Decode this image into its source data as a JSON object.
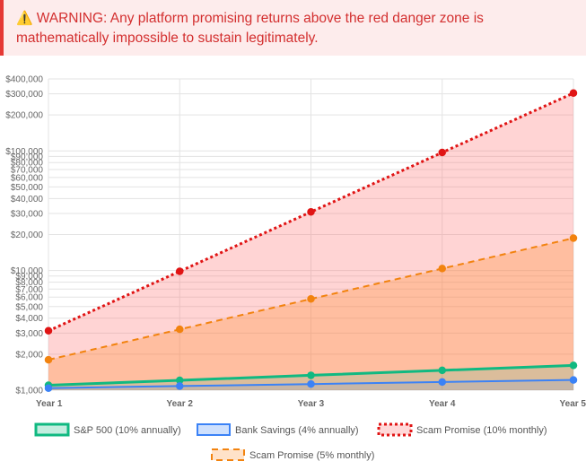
{
  "warning": {
    "icon": "warning-icon",
    "text": "WARNING: Any platform promising returns above the red danger zone is mathematically impossible to sustain legitimately."
  },
  "chart_data": {
    "type": "line",
    "x": [
      "Year 1",
      "Year 2",
      "Year 3",
      "Year 4",
      "Year 5"
    ],
    "y_scale": "log",
    "ylim": [
      1000,
      400000
    ],
    "y_ticks": [
      {
        "v": 1000,
        "label": "$1,000"
      },
      {
        "v": 2000,
        "label": "$2,000"
      },
      {
        "v": 3000,
        "label": "$3,000"
      },
      {
        "v": 4000,
        "label": "$4,000"
      },
      {
        "v": 5000,
        "label": "$5,000"
      },
      {
        "v": 6000,
        "label": "$6,000"
      },
      {
        "v": 7000,
        "label": "$7,000"
      },
      {
        "v": 8000,
        "label": "$8,000"
      },
      {
        "v": 9000,
        "label": "$9,000"
      },
      {
        "v": 10000,
        "label": "$10,000"
      },
      {
        "v": 20000,
        "label": "$20,000"
      },
      {
        "v": 30000,
        "label": "$30,000"
      },
      {
        "v": 40000,
        "label": "$40,000"
      },
      {
        "v": 50000,
        "label": "$50,000"
      },
      {
        "v": 60000,
        "label": "$60,000"
      },
      {
        "v": 70000,
        "label": "$70,000"
      },
      {
        "v": 80000,
        "label": "$80,000"
      },
      {
        "v": 90000,
        "label": "$90,000"
      },
      {
        "v": 100000,
        "label": "$100,000"
      },
      {
        "v": 200000,
        "label": "$200,000"
      },
      {
        "v": 300000,
        "label": "$300,000"
      },
      {
        "v": 400000,
        "label": "$400,000"
      }
    ],
    "grid": true,
    "legend_position": "bottom",
    "series": [
      {
        "name": "S&P 500 (10% annually)",
        "values": [
          1100,
          1210,
          1331,
          1464,
          1611
        ],
        "color": "#10b981",
        "fill": "rgba(16,185,129,0.15)",
        "style": "solid",
        "width": 3
      },
      {
        "name": "Bank Savings (4% annually)",
        "values": [
          1040,
          1082,
          1125,
          1170,
          1217
        ],
        "color": "#3b82f6",
        "fill": "rgba(59,130,246,0.12)",
        "style": "solid",
        "width": 2
      },
      {
        "name": "Scam Promise (10% monthly)",
        "values": [
          3138,
          9850,
          30913,
          97017,
          304480
        ],
        "color": "#e01414",
        "fill": "rgba(255,99,99,0.28)",
        "style": "dotted",
        "width": 3
      },
      {
        "name": "Scam Promise (5% monthly)",
        "values": [
          1796,
          3226,
          5792,
          10401,
          18679
        ],
        "color": "#f2830f",
        "fill": "rgba(255,140,40,0.30)",
        "style": "dashed",
        "width": 2
      }
    ]
  }
}
